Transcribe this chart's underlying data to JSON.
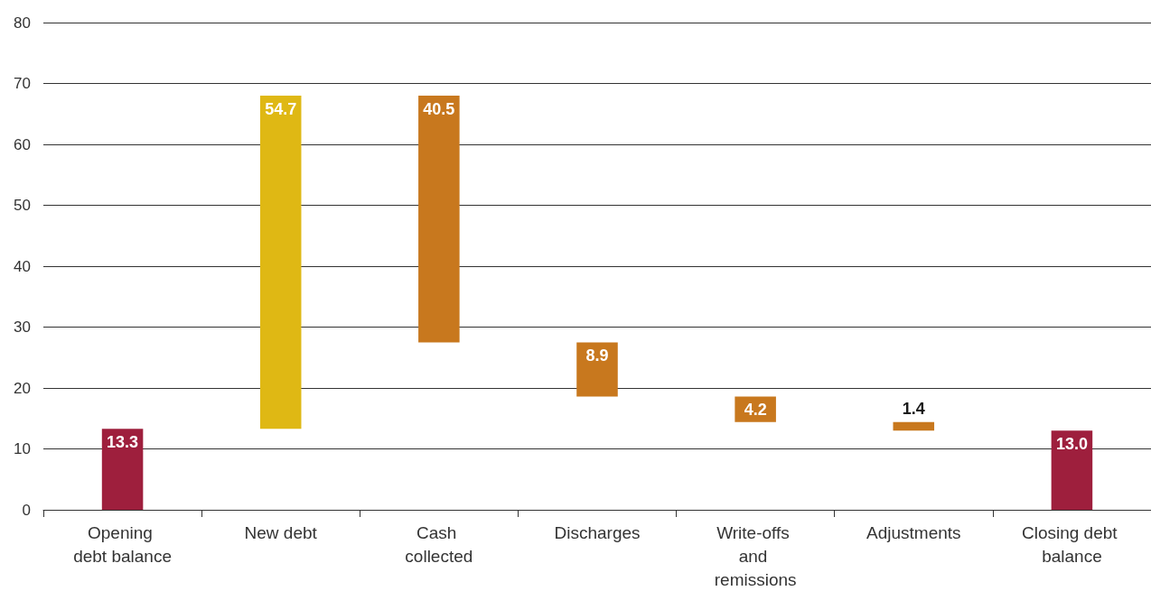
{
  "chart_data": {
    "type": "bar",
    "categories": [
      "Opening debt balance",
      "New debt",
      "Cash collected",
      "Discharges",
      "Write-offs and remissions",
      "Adjustments",
      "Closing debt balance"
    ],
    "values": [
      13.3,
      54.7,
      40.5,
      8.9,
      4.2,
      1.4,
      13.0
    ],
    "base": [
      0,
      13.3,
      27.5,
      18.6,
      14.4,
      13.0,
      0
    ],
    "colors": [
      "#9e1f3d",
      "#dfb814",
      "#c8781e",
      "#c8781e",
      "#c8781e",
      "#c8781e",
      "#9e1f3d"
    ],
    "ylim": [
      0,
      80
    ],
    "yticks": [
      0,
      10,
      20,
      30,
      40,
      50,
      60,
      70,
      80
    ],
    "value_labels": [
      "13.3",
      "54.7",
      "40.5",
      "8.9",
      "4.2",
      "1.4",
      "13.0"
    ],
    "grid": "y"
  }
}
